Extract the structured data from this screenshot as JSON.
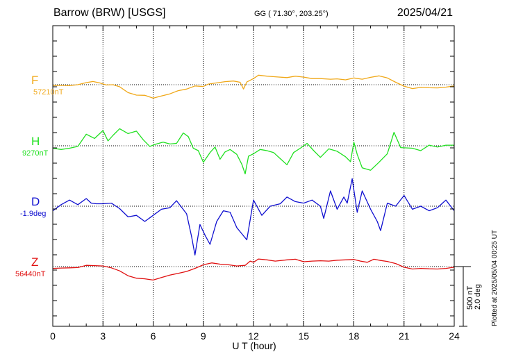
{
  "header": {
    "station": "Barrow (BRW)  [USGS]",
    "coords": "GG ( 71.30°, 203.25°)",
    "date": "2025/04/21"
  },
  "plotted_note": "Plotted at 2025/05/04 00:25 UT",
  "scale": {
    "nt": "500 nT",
    "deg": "2.0 deg",
    "nT_span": 500,
    "deg_span": 2.0
  },
  "colors": {
    "F": "#f0a818",
    "H": "#20e020",
    "D": "#1010d0",
    "Z": "#e01010"
  },
  "chart_data": {
    "type": "line",
    "title": "Barrow (BRW)  [USGS]",
    "xlabel": "U T (hour)",
    "xlim": [
      0,
      24
    ],
    "xticks": [
      "0",
      "3",
      "6",
      "9",
      "12",
      "15",
      "18",
      "21",
      "24"
    ],
    "grid": true,
    "series": [
      {
        "name": "F",
        "baseline": "57210nT",
        "baseline_value": 57210,
        "unit": "nT",
        "points": [
          [
            0,
            -7
          ],
          [
            0.5,
            -5
          ],
          [
            1,
            -8
          ],
          [
            1.5,
            0
          ],
          [
            2,
            17
          ],
          [
            2.4,
            26
          ],
          [
            2.8,
            15
          ],
          [
            3.2,
            -2
          ],
          [
            3.6,
            0
          ],
          [
            4,
            -17
          ],
          [
            4.5,
            -65
          ],
          [
            5,
            -85
          ],
          [
            5.5,
            -87
          ],
          [
            6,
            -110
          ],
          [
            6.5,
            -92
          ],
          [
            7,
            -75
          ],
          [
            7.5,
            -49
          ],
          [
            8,
            -36
          ],
          [
            8.5,
            -10
          ],
          [
            9,
            -15
          ],
          [
            9.3,
            5
          ],
          [
            9.8,
            15
          ],
          [
            10.3,
            25
          ],
          [
            10.8,
            30
          ],
          [
            11.2,
            20
          ],
          [
            11.4,
            -35
          ],
          [
            11.6,
            22
          ],
          [
            12,
            50
          ],
          [
            12.3,
            78
          ],
          [
            12.8,
            70
          ],
          [
            13.3,
            65
          ],
          [
            14,
            58
          ],
          [
            14.5,
            70
          ],
          [
            15,
            62
          ],
          [
            15.5,
            50
          ],
          [
            16,
            50
          ],
          [
            16.6,
            45
          ],
          [
            17,
            48
          ],
          [
            17.5,
            40
          ],
          [
            18,
            55
          ],
          [
            18.5,
            45
          ],
          [
            19,
            60
          ],
          [
            19.5,
            72
          ],
          [
            20,
            55
          ],
          [
            20.5,
            20
          ],
          [
            21,
            -12
          ],
          [
            21.5,
            -32
          ],
          [
            22,
            -22
          ],
          [
            22.5,
            -25
          ],
          [
            23,
            -26
          ],
          [
            23.5,
            -20
          ],
          [
            24,
            -10
          ]
        ]
      },
      {
        "name": "H",
        "baseline": "9270nT",
        "baseline_value": 9270,
        "unit": "nT",
        "points": [
          [
            0,
            -20
          ],
          [
            0.5,
            -30
          ],
          [
            1,
            -20
          ],
          [
            1.5,
            -5
          ],
          [
            2,
            95
          ],
          [
            2.5,
            60
          ],
          [
            3,
            125
          ],
          [
            3.3,
            40
          ],
          [
            3.6,
            85
          ],
          [
            4,
            140
          ],
          [
            4.5,
            100
          ],
          [
            5,
            120
          ],
          [
            5.4,
            50
          ],
          [
            5.8,
            -5
          ],
          [
            6.2,
            15
          ],
          [
            6.6,
            30
          ],
          [
            7,
            15
          ],
          [
            7.4,
            20
          ],
          [
            7.8,
            105
          ],
          [
            8.1,
            75
          ],
          [
            8.4,
            -20
          ],
          [
            8.7,
            -40
          ],
          [
            9,
            -135
          ],
          [
            9.4,
            -55
          ],
          [
            9.7,
            -10
          ],
          [
            10,
            -110
          ],
          [
            10.3,
            -50
          ],
          [
            10.6,
            -30
          ],
          [
            11,
            -70
          ],
          [
            11.3,
            -150
          ],
          [
            11.5,
            -230
          ],
          [
            11.7,
            -85
          ],
          [
            12,
            -65
          ],
          [
            12.4,
            -30
          ],
          [
            12.8,
            -40
          ],
          [
            13.2,
            -55
          ],
          [
            13.6,
            -105
          ],
          [
            14,
            -155
          ],
          [
            14.4,
            -55
          ],
          [
            14.8,
            -20
          ],
          [
            15.2,
            20
          ],
          [
            15.6,
            -40
          ],
          [
            16,
            -95
          ],
          [
            16.5,
            -25
          ],
          [
            17,
            -45
          ],
          [
            17.5,
            -90
          ],
          [
            17.8,
            -130
          ],
          [
            18,
            30
          ],
          [
            18.2,
            -70
          ],
          [
            18.5,
            -180
          ],
          [
            19,
            -200
          ],
          [
            19.5,
            -135
          ],
          [
            20,
            -65
          ],
          [
            20.4,
            110
          ],
          [
            20.8,
            -15
          ],
          [
            21.5,
            -20
          ],
          [
            22,
            -40
          ],
          [
            22.5,
            5
          ],
          [
            23,
            -10
          ],
          [
            23.5,
            5
          ],
          [
            24,
            5
          ]
        ]
      },
      {
        "name": "D",
        "baseline": "-1.9deg",
        "baseline_value": -1.9,
        "unit": "deg",
        "points": [
          [
            0,
            -0.15
          ],
          [
            0.5,
            0.05
          ],
          [
            1,
            0.2
          ],
          [
            1.5,
            0.05
          ],
          [
            2,
            0.25
          ],
          [
            2.3,
            0.1
          ],
          [
            2.6,
            0.08
          ],
          [
            3,
            0.08
          ],
          [
            3.5,
            0.1
          ],
          [
            4,
            -0.08
          ],
          [
            4.5,
            -0.35
          ],
          [
            5,
            -0.3
          ],
          [
            5.5,
            -0.5
          ],
          [
            6,
            -0.3
          ],
          [
            6.5,
            -0.1
          ],
          [
            7,
            -0.05
          ],
          [
            7.4,
            0.18
          ],
          [
            8,
            -0.25
          ],
          [
            8.3,
            -1.0
          ],
          [
            8.5,
            -1.6
          ],
          [
            8.8,
            -0.6
          ],
          [
            9.1,
            -0.95
          ],
          [
            9.4,
            -1.25
          ],
          [
            9.8,
            -0.5
          ],
          [
            10.2,
            -0.15
          ],
          [
            10.6,
            -0.2
          ],
          [
            11,
            -0.7
          ],
          [
            11.3,
            -0.9
          ],
          [
            11.6,
            -1.1
          ],
          [
            12,
            0.2
          ],
          [
            12.5,
            -0.3
          ],
          [
            13,
            0.0
          ],
          [
            13.6,
            0.08
          ],
          [
            14,
            0.3
          ],
          [
            14.5,
            0.15
          ],
          [
            15,
            0.1
          ],
          [
            15.5,
            0.2
          ],
          [
            16,
            0.0
          ],
          [
            16.2,
            -0.4
          ],
          [
            16.6,
            0.5
          ],
          [
            17,
            -0.1
          ],
          [
            17.4,
            0.3
          ],
          [
            17.6,
            0.1
          ],
          [
            17.9,
            0.9
          ],
          [
            18.2,
            -0.2
          ],
          [
            18.5,
            0.5
          ],
          [
            19,
            -0.1
          ],
          [
            19.4,
            -0.5
          ],
          [
            19.6,
            -0.8
          ],
          [
            20,
            0.1
          ],
          [
            20.5,
            0.0
          ],
          [
            21,
            0.35
          ],
          [
            21.5,
            -0.1
          ],
          [
            22,
            0.0
          ],
          [
            22.5,
            -0.15
          ],
          [
            23,
            -0.05
          ],
          [
            23.5,
            0.2
          ],
          [
            24,
            -0.15
          ]
        ]
      },
      {
        "name": "Z",
        "baseline": "56440nT",
        "baseline_value": 56440,
        "unit": "nT",
        "points": [
          [
            0,
            -15
          ],
          [
            0.5,
            -12
          ],
          [
            1,
            -10
          ],
          [
            1.5,
            -8
          ],
          [
            2,
            10
          ],
          [
            2.5,
            8
          ],
          [
            3,
            5
          ],
          [
            3.5,
            -10
          ],
          [
            4,
            -35
          ],
          [
            4.5,
            -75
          ],
          [
            5,
            -95
          ],
          [
            5.5,
            -100
          ],
          [
            6,
            -110
          ],
          [
            6.5,
            -90
          ],
          [
            7,
            -70
          ],
          [
            7.5,
            -55
          ],
          [
            8,
            -40
          ],
          [
            8.5,
            -15
          ],
          [
            9,
            15
          ],
          [
            9.5,
            30
          ],
          [
            10,
            20
          ],
          [
            10.5,
            15
          ],
          [
            11,
            5
          ],
          [
            11.5,
            10
          ],
          [
            11.8,
            45
          ],
          [
            12,
            35
          ],
          [
            12.3,
            62
          ],
          [
            12.8,
            55
          ],
          [
            13.3,
            45
          ],
          [
            14,
            55
          ],
          [
            14.5,
            60
          ],
          [
            15,
            40
          ],
          [
            15.5,
            45
          ],
          [
            16,
            48
          ],
          [
            16.5,
            45
          ],
          [
            17,
            52
          ],
          [
            17.5,
            55
          ],
          [
            18,
            58
          ],
          [
            18.4,
            45
          ],
          [
            18.8,
            35
          ],
          [
            19.2,
            60
          ],
          [
            19.6,
            50
          ],
          [
            20,
            42
          ],
          [
            20.5,
            25
          ],
          [
            21,
            -5
          ],
          [
            21.5,
            -20
          ],
          [
            22,
            -15
          ],
          [
            22.5,
            -18
          ],
          [
            23,
            -20
          ],
          [
            23.5,
            -15
          ],
          [
            24,
            -5
          ]
        ]
      }
    ]
  }
}
